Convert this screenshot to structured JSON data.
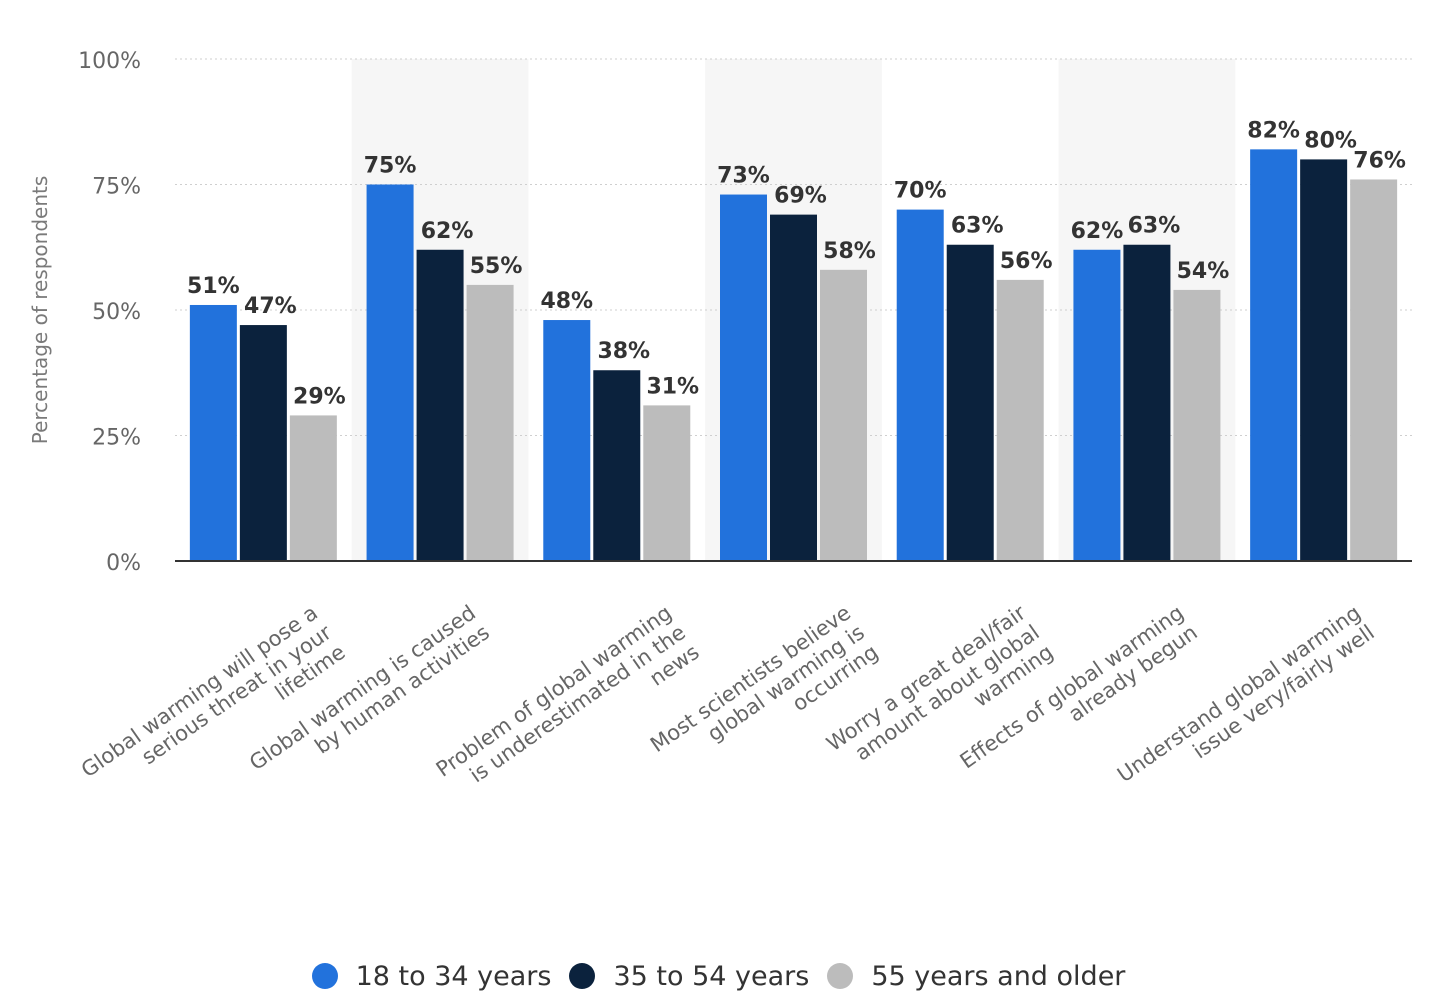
{
  "chart_data": {
    "type": "bar",
    "title": "",
    "xlabel": "",
    "ylabel": "Percentage of respondents",
    "ylim": [
      0,
      100
    ],
    "yticks": [
      0,
      25,
      50,
      75,
      100
    ],
    "ytick_labels": [
      "0%",
      "25%",
      "50%",
      "75%",
      "100%"
    ],
    "grid": true,
    "legend_position": "bottom",
    "categories": [
      "Global warming will pose a serious threat in your lifetime",
      "Global warming is caused by human activities",
      "Problem of global warming is underestimated in the news",
      "Most scientists believe global warming is occurring",
      "Worry a great deal/fair amount about global warming",
      "Effects of global warming already begun",
      "Understand global warming issue very/fairly well"
    ],
    "category_label_lines": [
      [
        "Global warming will pose a",
        "serious threat in your",
        "lifetime"
      ],
      [
        "Global warming is caused",
        "by human activities"
      ],
      [
        "Problem of global warming",
        "is underestimated in the",
        "news"
      ],
      [
        "Most scientists believe",
        "global warming is",
        "occurring"
      ],
      [
        "Worry a great deal/fair",
        "amount about global",
        "warming"
      ],
      [
        "Effects of global warming",
        "already begun"
      ],
      [
        "Understand global warming",
        "issue very/fairly well"
      ]
    ],
    "series": [
      {
        "name": "18 to 34 years",
        "color": "#2272dc",
        "values": [
          51,
          75,
          48,
          73,
          70,
          62,
          82
        ],
        "labels": [
          "51%",
          "75%",
          "48%",
          "73%",
          "70%",
          "62%",
          "82%"
        ]
      },
      {
        "name": "35 to 54 years",
        "color": "#0b223d",
        "values": [
          47,
          62,
          38,
          69,
          63,
          63,
          80
        ],
        "labels": [
          "47%",
          "62%",
          "38%",
          "69%",
          "63%",
          "63%",
          "80%"
        ]
      },
      {
        "name": "55 years and older",
        "color": "#bcbcbc",
        "values": [
          29,
          55,
          31,
          58,
          56,
          54,
          76
        ],
        "labels": [
          "29%",
          "55%",
          "31%",
          "58%",
          "56%",
          "54%",
          "76%"
        ]
      }
    ]
  }
}
